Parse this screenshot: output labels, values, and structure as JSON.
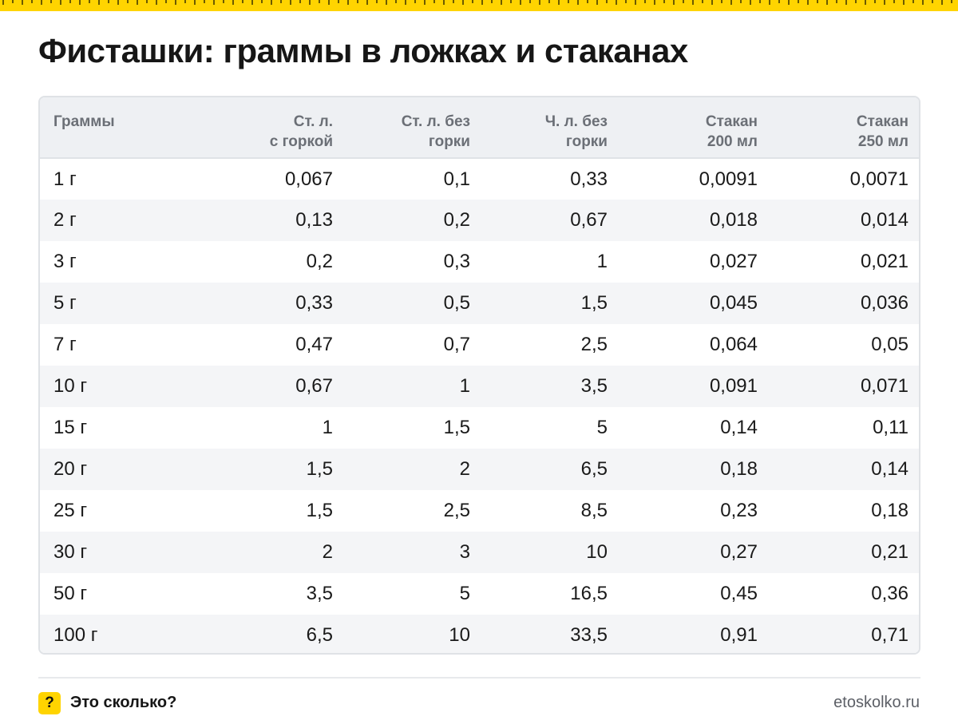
{
  "title": "Фисташки: граммы в ложках и стаканах",
  "table": {
    "headers": [
      "Граммы",
      "Ст. л.\nс горкой",
      "Ст. л. без\nгорки",
      "Ч. л. без\nгорки",
      "Стакан\n200 мл",
      "Стакан\n250 мл"
    ],
    "rows": [
      [
        "1 г",
        "0,067",
        "0,1",
        "0,33",
        "0,0091",
        "0,0071"
      ],
      [
        "2 г",
        "0,13",
        "0,2",
        "0,67",
        "0,018",
        "0,014"
      ],
      [
        "3 г",
        "0,2",
        "0,3",
        "1",
        "0,027",
        "0,021"
      ],
      [
        "5 г",
        "0,33",
        "0,5",
        "1,5",
        "0,045",
        "0,036"
      ],
      [
        "7 г",
        "0,47",
        "0,7",
        "2,5",
        "0,064",
        "0,05"
      ],
      [
        "10 г",
        "0,67",
        "1",
        "3,5",
        "0,091",
        "0,071"
      ],
      [
        "15 г",
        "1",
        "1,5",
        "5",
        "0,14",
        "0,11"
      ],
      [
        "20 г",
        "1,5",
        "2",
        "6,5",
        "0,18",
        "0,14"
      ],
      [
        "25 г",
        "1,5",
        "2,5",
        "8,5",
        "0,23",
        "0,18"
      ],
      [
        "30 г",
        "2",
        "3",
        "10",
        "0,27",
        "0,21"
      ],
      [
        "50 г",
        "3,5",
        "5",
        "16,5",
        "0,45",
        "0,36"
      ],
      [
        "100 г",
        "6,5",
        "10",
        "33,5",
        "0,91",
        "0,71"
      ]
    ]
  },
  "footer": {
    "logo_mark": "?",
    "logo_text": "Это сколько?",
    "site": "etoskolko.ru"
  },
  "colors": {
    "accent": "#ffd400",
    "header_bg": "#eef0f3",
    "stripe_bg": "#f4f5f7"
  }
}
